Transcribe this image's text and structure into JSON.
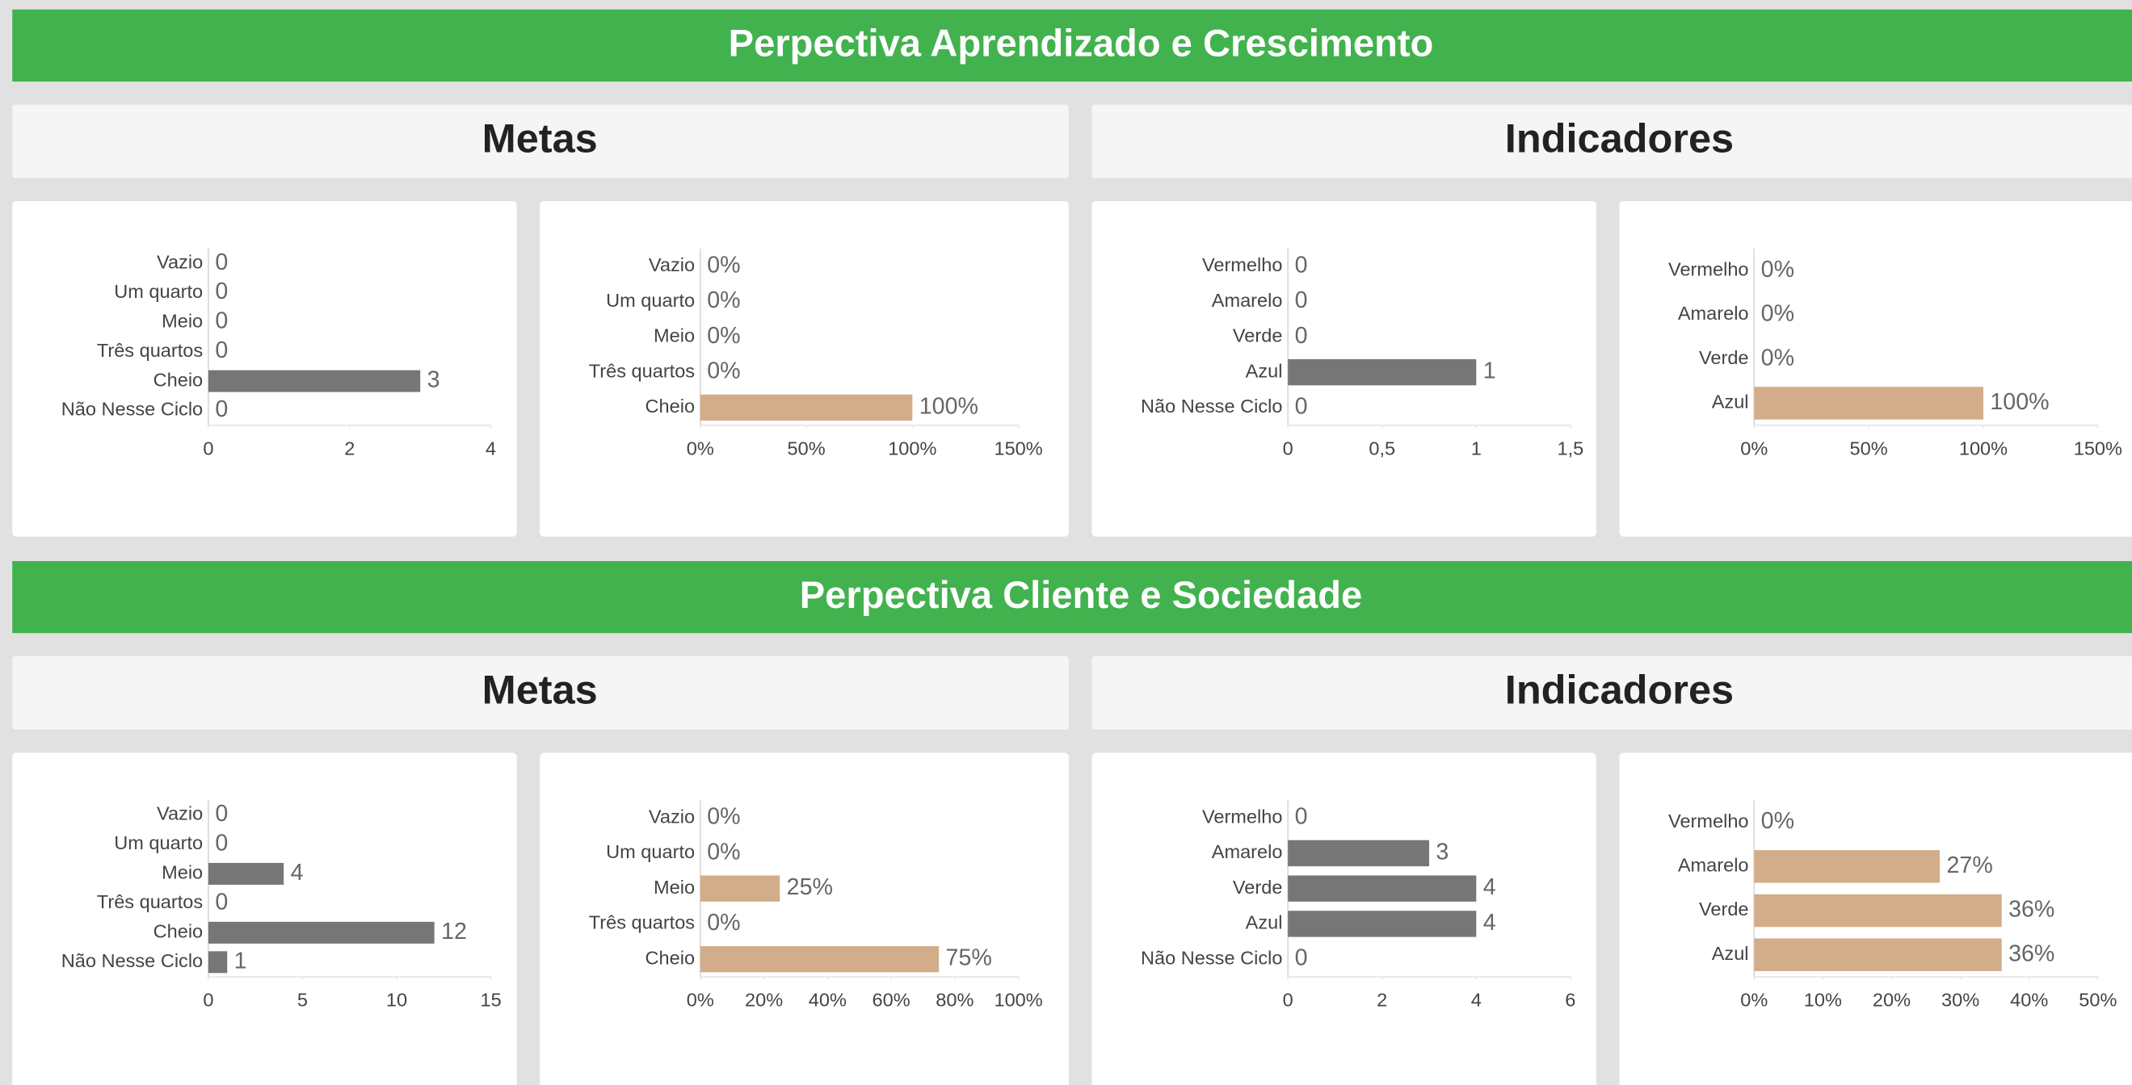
{
  "sections": [
    {
      "title": "Perpectiva Aprendizado e Crescimento",
      "headers": [
        "Metas",
        "Indicadores"
      ]
    },
    {
      "title": "Perpectiva Cliente e Sociedade",
      "headers": [
        "Metas",
        "Indicadores"
      ]
    }
  ],
  "chart_data": [
    {
      "type": "bar",
      "orientation": "horizontal",
      "categories": [
        "Vazio",
        "Um quarto",
        "Meio",
        "Três quartos",
        "Cheio",
        "Não Nesse Ciclo"
      ],
      "values": [
        0,
        0,
        0,
        0,
        3,
        0
      ],
      "color": "#767676",
      "xlim": [
        0,
        4
      ],
      "xticks": [
        0,
        2,
        4
      ]
    },
    {
      "type": "bar",
      "orientation": "horizontal",
      "categories": [
        "Vazio",
        "Um quarto",
        "Meio",
        "Três quartos",
        "Cheio"
      ],
      "values": [
        0,
        0,
        0,
        0,
        100
      ],
      "value_labels": [
        "0%",
        "0%",
        "0%",
        "0%",
        "100%"
      ],
      "color": "#d3ad8a",
      "xlim": [
        0,
        150
      ],
      "xticks": [
        {
          "value": 0,
          "label": "0%"
        },
        {
          "value": 50,
          "label": "50%"
        },
        {
          "value": 100,
          "label": "100%"
        },
        {
          "value": 150,
          "label": "150%"
        }
      ]
    },
    {
      "type": "bar",
      "orientation": "horizontal",
      "categories": [
        "Vermelho",
        "Amarelo",
        "Verde",
        "Azul",
        "Não Nesse Ciclo"
      ],
      "values": [
        0,
        0,
        0,
        1,
        0
      ],
      "color": "#767676",
      "xlim": [
        0,
        1.5
      ],
      "xticks": [
        0,
        {
          "value": 0.5,
          "label": "0,5"
        },
        1,
        {
          "value": 1.5,
          "label": "1,5"
        }
      ]
    },
    {
      "type": "bar",
      "orientation": "horizontal",
      "categories": [
        "Vermelho",
        "Amarelo",
        "Verde",
        "Azul"
      ],
      "values": [
        0,
        0,
        0,
        100
      ],
      "value_labels": [
        "0%",
        "0%",
        "0%",
        "100%"
      ],
      "color": "#d3ad8a",
      "xlim": [
        0,
        150
      ],
      "xticks": [
        {
          "value": 0,
          "label": "0%"
        },
        {
          "value": 50,
          "label": "50%"
        },
        {
          "value": 100,
          "label": "100%"
        },
        {
          "value": 150,
          "label": "150%"
        }
      ]
    },
    {
      "type": "bar",
      "orientation": "horizontal",
      "categories": [
        "Vazio",
        "Um quarto",
        "Meio",
        "Três quartos",
        "Cheio",
        "Não Nesse Ciclo"
      ],
      "values": [
        0,
        0,
        4,
        0,
        12,
        1
      ],
      "color": "#767676",
      "xlim": [
        0,
        15
      ],
      "xticks": [
        0,
        5,
        10,
        15
      ]
    },
    {
      "type": "bar",
      "orientation": "horizontal",
      "categories": [
        "Vazio",
        "Um quarto",
        "Meio",
        "Três quartos",
        "Cheio"
      ],
      "values": [
        0,
        0,
        25,
        0,
        75
      ],
      "value_labels": [
        "0%",
        "0%",
        "25%",
        "0%",
        "75%"
      ],
      "color": "#d3ad8a",
      "xlim": [
        0,
        100
      ],
      "xticks": [
        {
          "value": 0,
          "label": "0%"
        },
        {
          "value": 20,
          "label": "20%"
        },
        {
          "value": 40,
          "label": "40%"
        },
        {
          "value": 60,
          "label": "60%"
        },
        {
          "value": 80,
          "label": "80%"
        },
        {
          "value": 100,
          "label": "100%"
        }
      ]
    },
    {
      "type": "bar",
      "orientation": "horizontal",
      "categories": [
        "Vermelho",
        "Amarelo",
        "Verde",
        "Azul",
        "Não Nesse Ciclo"
      ],
      "values": [
        0,
        3,
        4,
        4,
        0
      ],
      "color": "#767676",
      "xlim": [
        0,
        6
      ],
      "xticks": [
        0,
        2,
        4,
        6
      ]
    },
    {
      "type": "bar",
      "orientation": "horizontal",
      "categories": [
        "Vermelho",
        "Amarelo",
        "Verde",
        "Azul"
      ],
      "values": [
        0,
        27,
        36,
        36
      ],
      "value_labels": [
        "0%",
        "27%",
        "36%",
        "36%"
      ],
      "color": "#d3ad8a",
      "xlim": [
        0,
        50
      ],
      "xticks": [
        {
          "value": 0,
          "label": "0%"
        },
        {
          "value": 10,
          "label": "10%"
        },
        {
          "value": 20,
          "label": "20%"
        },
        {
          "value": 30,
          "label": "30%"
        },
        {
          "value": 40,
          "label": "40%"
        },
        {
          "value": 50,
          "label": "50%"
        }
      ]
    }
  ]
}
